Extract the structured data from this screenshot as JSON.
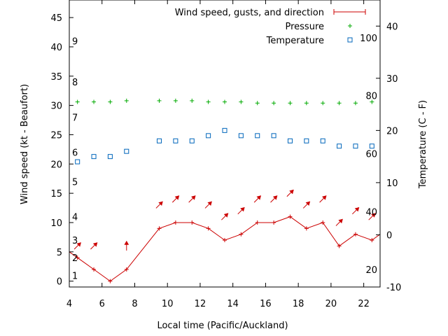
{
  "chart_data": {
    "type": "line",
    "xlabel": "Local time (Pacific/Auckland)",
    "ylabel_left": "Wind speed (kt - Beaufort)",
    "ylabel_right": "Temperature (C - F)",
    "xlim": [
      4,
      23
    ],
    "ylim_left": [
      -1,
      48
    ],
    "ylim_right": [
      -10,
      45
    ],
    "x_ticks": [
      4,
      6,
      8,
      10,
      12,
      14,
      16,
      18,
      20,
      22
    ],
    "y_left_ticks": [
      0,
      5,
      10,
      15,
      20,
      25,
      30,
      35,
      40,
      45
    ],
    "y_right_ticks": [
      -10,
      0,
      10,
      20,
      30,
      40
    ],
    "beaufort_labels": [
      {
        "label": "1",
        "kt": 1
      },
      {
        "label": "2",
        "kt": 4
      },
      {
        "label": "3",
        "kt": 7
      },
      {
        "label": "4",
        "kt": 11
      },
      {
        "label": "5",
        "kt": 17
      },
      {
        "label": "6",
        "kt": 22
      },
      {
        "label": "7",
        "kt": 28
      },
      {
        "label": "8",
        "kt": 34
      },
      {
        "label": "9",
        "kt": 41
      }
    ],
    "fahrenheit_labels": [
      {
        "label": "20",
        "celsius": -6.67
      },
      {
        "label": "40",
        "celsius": 4.44
      },
      {
        "label": "60",
        "celsius": 15.56
      },
      {
        "label": "80",
        "celsius": 26.67
      },
      {
        "label": "100",
        "celsius": 37.78
      }
    ],
    "legend_position": "top-right",
    "series": [
      {
        "name": "Wind speed, gusts, and direction",
        "type": "line",
        "color": "#cc0000",
        "x": [
          3.5,
          4.5,
          5.5,
          6.5,
          7.5,
          9.5,
          10.5,
          11.5,
          12.5,
          13.5,
          14.5,
          15.5,
          16.5,
          17.5,
          18.5,
          19.5,
          20.5,
          21.5,
          22.5,
          23.5
        ],
        "y": [
          5,
          4,
          2,
          0,
          2,
          9,
          10,
          10,
          9,
          7,
          8,
          10,
          10,
          11,
          9,
          10,
          6,
          8,
          7,
          8
        ]
      },
      {
        "name": "Pressure",
        "type": "scatter",
        "color": "#00aa00",
        "x": [
          4.5,
          5.5,
          6.5,
          7.5,
          9.5,
          10.5,
          11.5,
          12.5,
          13.5,
          14.5,
          15.5,
          16.5,
          17.5,
          18.5,
          19.5,
          20.5,
          21.5,
          22.5
        ],
        "y": [
          30.6,
          30.6,
          30.6,
          30.8,
          30.8,
          30.8,
          30.8,
          30.6,
          30.6,
          30.6,
          30.4,
          30.4,
          30.4,
          30.4,
          30.4,
          30.4,
          30.4,
          30.6
        ]
      },
      {
        "name": "Temperature",
        "type": "scatter",
        "color": "#0066bb",
        "x": [
          4.5,
          5.5,
          6.5,
          7.5,
          9.5,
          10.5,
          11.5,
          12.5,
          13.5,
          14.5,
          15.5,
          16.5,
          17.5,
          18.5,
          19.5,
          20.5,
          21.5,
          22.5
        ],
        "y": [
          14,
          15,
          15,
          16,
          18,
          18,
          18,
          19,
          20,
          19,
          19,
          19,
          18,
          18,
          18,
          17,
          17,
          17
        ]
      }
    ],
    "wind_arrows": [
      {
        "x": 4.5,
        "kt": 6,
        "dx": 1,
        "dy": -1
      },
      {
        "x": 5.5,
        "kt": 6,
        "dx": 1,
        "dy": -1
      },
      {
        "x": 7.5,
        "kt": 6,
        "dx": 0,
        "dy": -1
      },
      {
        "x": 9.5,
        "kt": 13,
        "dx": 1,
        "dy": -1
      },
      {
        "x": 10.5,
        "kt": 14,
        "dx": 1,
        "dy": -1
      },
      {
        "x": 11.5,
        "kt": 14,
        "dx": 1,
        "dy": -1
      },
      {
        "x": 12.5,
        "kt": 13,
        "dx": 1,
        "dy": -1
      },
      {
        "x": 13.5,
        "kt": 11,
        "dx": 1,
        "dy": -1
      },
      {
        "x": 14.5,
        "kt": 12,
        "dx": 1,
        "dy": -1
      },
      {
        "x": 15.5,
        "kt": 14,
        "dx": 1,
        "dy": -1
      },
      {
        "x": 16.5,
        "kt": 14,
        "dx": 1,
        "dy": -1
      },
      {
        "x": 17.5,
        "kt": 15,
        "dx": 1,
        "dy": -1
      },
      {
        "x": 18.5,
        "kt": 13,
        "dx": 1,
        "dy": -1
      },
      {
        "x": 19.5,
        "kt": 14,
        "dx": 1,
        "dy": -1
      },
      {
        "x": 20.5,
        "kt": 10,
        "dx": 1,
        "dy": -1
      },
      {
        "x": 21.5,
        "kt": 12,
        "dx": 1,
        "dy": -1
      },
      {
        "x": 22.5,
        "kt": 11,
        "dx": 1,
        "dy": -1
      }
    ]
  }
}
